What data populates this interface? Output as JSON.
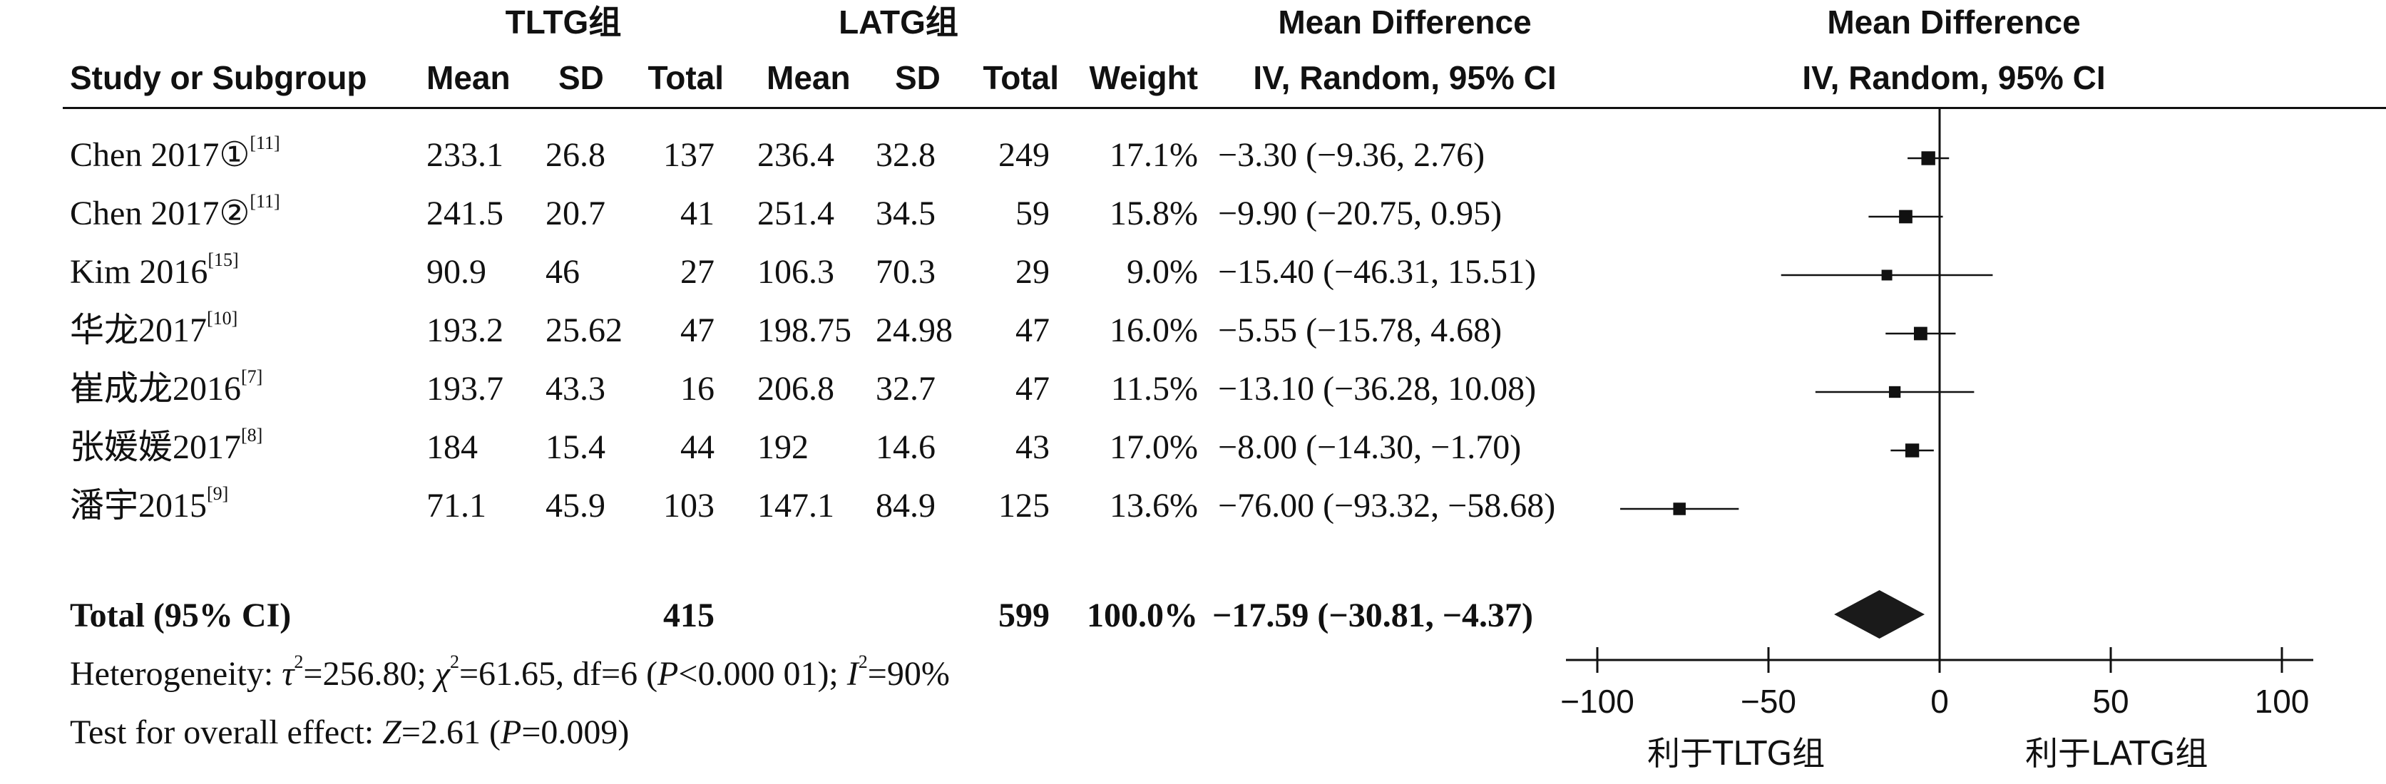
{
  "header": {
    "group1": "TLTG组",
    "group2": "LATG组",
    "md_title": "Mean Difference",
    "md_sub": "IV, Random, 95% CI",
    "plot_title": "Mean Difference",
    "plot_sub": "IV, Random, 95% CI",
    "study_col": "Study or Subgroup",
    "mean1": "Mean",
    "sd1": "SD",
    "total1": "Total",
    "mean2": "Mean",
    "sd2": "SD",
    "total2": "Total",
    "weight": "Weight"
  },
  "studies": [
    {
      "name": "Chen 2017①",
      "ref": "[11]",
      "mean1": "233.1",
      "sd1": "26.8",
      "n1": "137",
      "mean2": "236.4",
      "sd2": "32.8",
      "n2": "249",
      "weight": "17.1%",
      "ci": "−3.30 (−9.36, 2.76)"
    },
    {
      "name": "Chen 2017②",
      "ref": "[11]",
      "mean1": "241.5",
      "sd1": "20.7",
      "n1": "41",
      "mean2": "251.4",
      "sd2": "34.5",
      "n2": "59",
      "weight": "15.8%",
      "ci": "−9.90 (−20.75, 0.95)"
    },
    {
      "name": "Kim 2016",
      "ref": "[15]",
      "mean1": "90.9",
      "sd1": "46",
      "n1": "27",
      "mean2": "106.3",
      "sd2": "70.3",
      "n2": "29",
      "weight": "9.0%",
      "ci": "−15.40 (−46.31, 15.51)"
    },
    {
      "name": "华龙2017",
      "ref": "[10]",
      "mean1": "193.2",
      "sd1": "25.62",
      "n1": "47",
      "mean2": "198.75",
      "sd2": "24.98",
      "n2": "47",
      "weight": "16.0%",
      "ci": "−5.55 (−15.78, 4.68)"
    },
    {
      "name": "崔成龙2016",
      "ref": "[7]",
      "mean1": "193.7",
      "sd1": "43.3",
      "n1": "16",
      "mean2": "206.8",
      "sd2": "32.7",
      "n2": "47",
      "weight": "11.5%",
      "ci": "−13.10 (−36.28, 10.08)"
    },
    {
      "name": "张媛媛2017",
      "ref": "[8]",
      "mean1": "184",
      "sd1": "15.4",
      "n1": "44",
      "mean2": "192",
      "sd2": "14.6",
      "n2": "43",
      "weight": "17.0%",
      "ci": "−8.00 (−14.30, −1.70)"
    },
    {
      "name": "潘宇2015",
      "ref": "[9]",
      "mean1": "71.1",
      "sd1": "45.9",
      "n1": "103",
      "mean2": "147.1",
      "sd2": "84.9",
      "n2": "125",
      "weight": "13.6%",
      "ci": "−76.00 (−93.32, −58.68)"
    }
  ],
  "total": {
    "label": "Total (95% CI)",
    "n1": "415",
    "n2": "599",
    "weight": "100.0%",
    "ci": "−17.59 (−30.81, −4.37)"
  },
  "heterogeneity": {
    "prefix": "Heterogeneity: ",
    "tau_sym": "τ",
    "tau_val": "=256.80; ",
    "chi_sym": "χ",
    "chi_val": "=61.65, df=6 (",
    "p_sym": "P",
    "p_val": "<0.000 01); ",
    "i_sym": "I",
    "i_val": "=90%"
  },
  "overall": {
    "prefix": "Test for overall effect: ",
    "z_sym": "Z",
    "z_val": "=2.61 (",
    "p_sym": "P",
    "p_val": "=0.009)"
  },
  "axis": {
    "favours_left": "利于TLTG组",
    "favours_right": "利于LATG组"
  },
  "chart_data": {
    "type": "forest",
    "xlim": [
      -100,
      100
    ],
    "ticks": [
      -100,
      -50,
      0,
      50,
      100
    ],
    "tick_labels": [
      "−100",
      "−50",
      "0",
      "50",
      "100"
    ],
    "studies": [
      {
        "md": -3.3,
        "lo": -9.36,
        "hi": 2.76,
        "weight": 17.1
      },
      {
        "md": -9.9,
        "lo": -20.75,
        "hi": 0.95,
        "weight": 15.8
      },
      {
        "md": -15.4,
        "lo": -46.31,
        "hi": 15.51,
        "weight": 9.0
      },
      {
        "md": -5.55,
        "lo": -15.78,
        "hi": 4.68,
        "weight": 16.0
      },
      {
        "md": -13.1,
        "lo": -36.28,
        "hi": 10.08,
        "weight": 11.5
      },
      {
        "md": -8.0,
        "lo": -14.3,
        "hi": -1.7,
        "weight": 17.0
      },
      {
        "md": -76.0,
        "lo": -93.32,
        "hi": -58.68,
        "weight": 13.6
      }
    ],
    "pooled": {
      "md": -17.59,
      "lo": -30.81,
      "hi": -4.37
    }
  }
}
